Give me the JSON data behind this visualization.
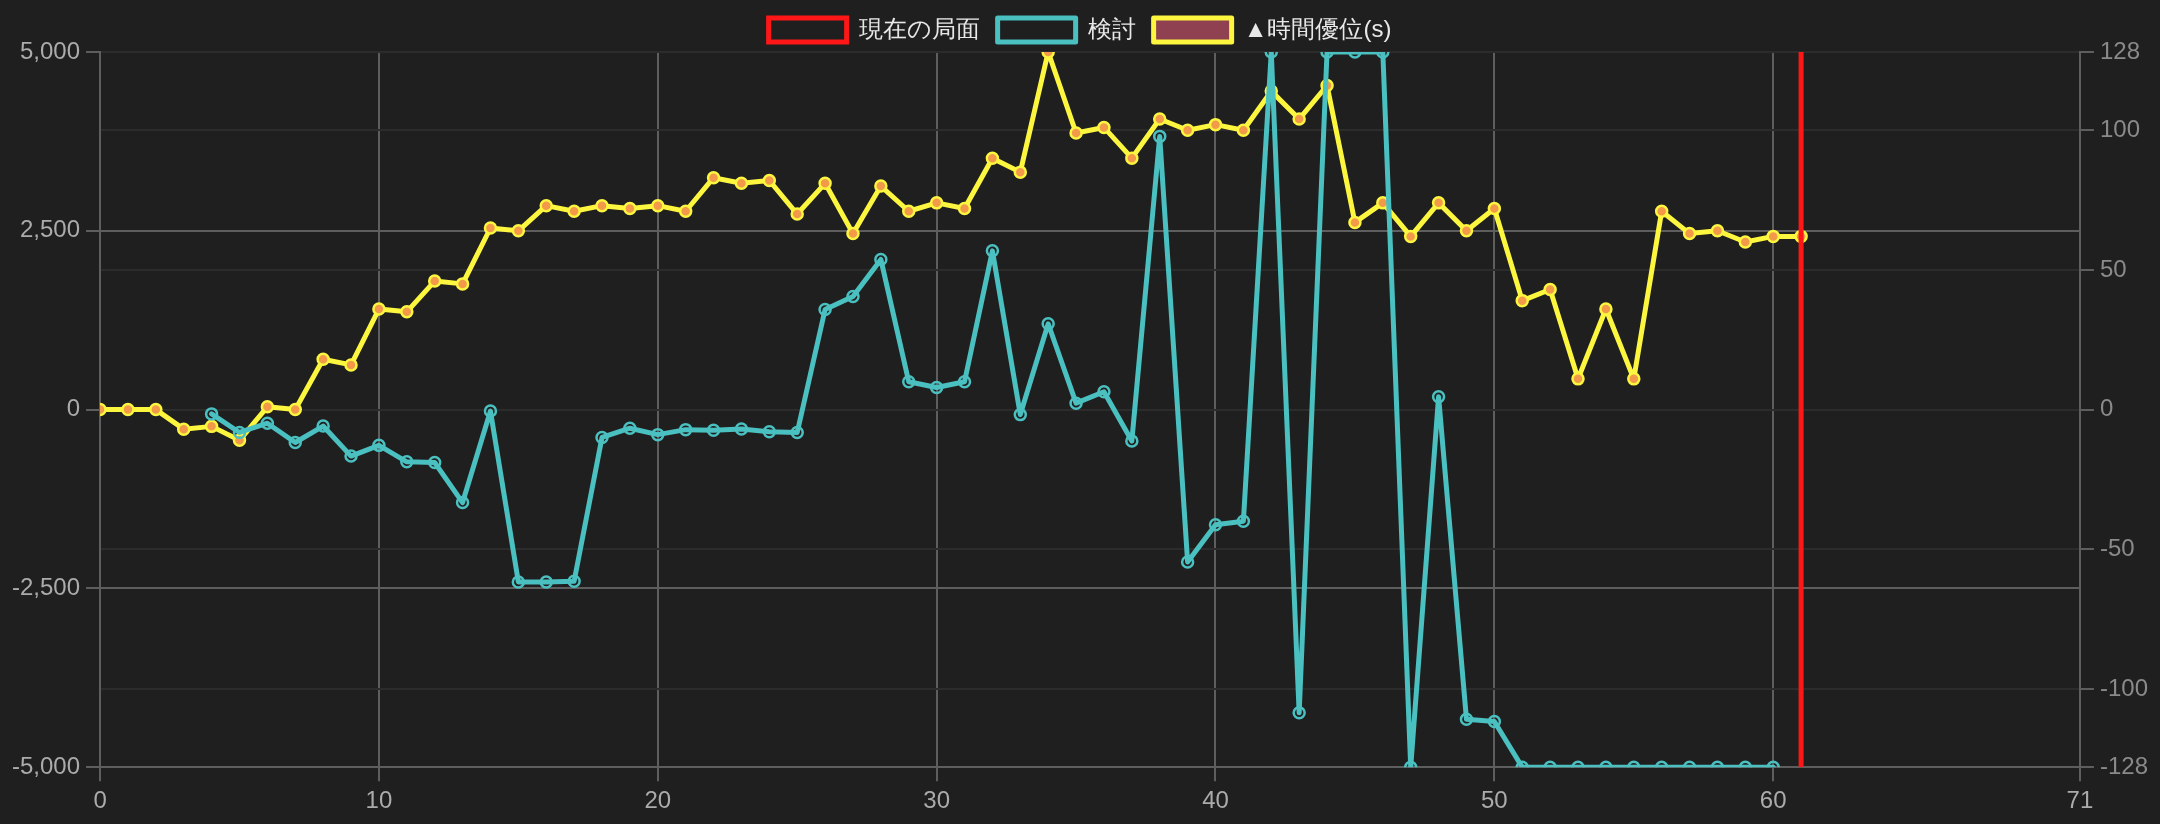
{
  "chart_data": {
    "type": "line",
    "x": [
      0,
      1,
      2,
      3,
      4,
      5,
      6,
      7,
      8,
      9,
      10,
      11,
      12,
      13,
      14,
      15,
      16,
      17,
      18,
      19,
      20,
      21,
      22,
      23,
      24,
      25,
      26,
      27,
      28,
      29,
      30,
      31,
      32,
      33,
      34,
      35,
      36,
      37,
      38,
      39,
      40,
      41,
      42,
      43,
      44,
      45,
      46,
      47,
      48,
      49,
      50,
      51,
      52,
      53,
      54,
      55,
      56,
      57,
      58,
      59,
      60,
      61
    ],
    "xlim": [
      0,
      71
    ],
    "xticks": [
      0,
      10,
      20,
      30,
      40,
      50,
      60,
      71
    ],
    "ylim": [
      -5000,
      5000
    ],
    "yticks": [
      {
        "value": -5000,
        "label": "-5,000"
      },
      {
        "value": -2500,
        "label": "-2,500"
      },
      0,
      {
        "value": 2500,
        "label": "2,500"
      },
      {
        "value": 5000,
        "label": "5,000"
      }
    ],
    "y2lim": [
      -128,
      128
    ],
    "y2ticks": [
      -128,
      -100,
      -50,
      0,
      50,
      100,
      128
    ],
    "series": [
      {
        "name": "検討",
        "color": "#4bc0c0",
        "values": [
          null,
          null,
          null,
          null,
          -60,
          -320,
          -190,
          -460,
          -230,
          -650,
          -500,
          -730,
          -740,
          -1300,
          -20,
          -2410,
          -2410,
          -2400,
          -390,
          -260,
          -350,
          -280,
          -290,
          -270,
          -310,
          -320,
          1400,
          1580,
          2100,
          390,
          310,
          390,
          2220,
          -70,
          1200,
          90,
          250,
          -440,
          3820,
          -2130,
          -1610,
          -1560,
          5000,
          -4240,
          5000,
          5000,
          5000,
          -5000,
          180,
          -4330,
          -4360,
          -5000,
          -5000,
          -5000,
          -5000,
          -5000,
          -5000,
          -5000,
          -5000,
          -5000,
          -5000,
          null
        ]
      },
      {
        "name": "▲時間優位(s)",
        "color": "#fdf63f",
        "axis": "y2",
        "values": [
          0,
          0,
          0,
          -7,
          -6,
          -11,
          1,
          0,
          18,
          16,
          36,
          35,
          46,
          45,
          65,
          64,
          73,
          71,
          73,
          72,
          73,
          71,
          83,
          81,
          82,
          70,
          81,
          63,
          80,
          71,
          74,
          72,
          90,
          85,
          128,
          99,
          101,
          90,
          104,
          100,
          102,
          100,
          114,
          104,
          116,
          67,
          74,
          62,
          74,
          64,
          72,
          39,
          43,
          11,
          36,
          11,
          71,
          63,
          64,
          60,
          62,
          62
        ]
      }
    ],
    "ref_lines": [
      {
        "axis": "x",
        "value": 61,
        "label": "現在の局面",
        "color": "#ff1717"
      }
    ],
    "grid": true,
    "legend": "top",
    "marker": "circle"
  }
}
